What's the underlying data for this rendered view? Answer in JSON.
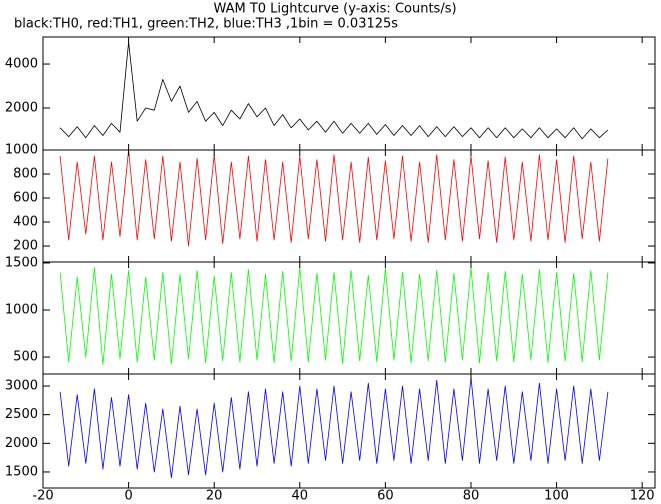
{
  "chart_data": {
    "type": "line",
    "title": "WAM T0 Lightcurve (y-axis: Counts/s)",
    "subtitle": "black:TH0, red:TH1, green:TH2, blue:TH3 ,1bin = 0.03125s",
    "x": [
      -16,
      -14,
      -12,
      -10,
      -8,
      -6,
      -4,
      -2,
      0,
      2,
      4,
      6,
      8,
      10,
      12,
      14,
      16,
      18,
      20,
      22,
      24,
      26,
      28,
      30,
      32,
      34,
      36,
      38,
      40,
      42,
      44,
      46,
      48,
      50,
      52,
      54,
      56,
      58,
      60,
      62,
      64,
      66,
      68,
      70,
      72,
      74,
      76,
      78,
      80,
      82,
      84,
      86,
      88,
      90,
      92,
      94,
      96,
      98,
      100,
      102,
      104,
      106,
      108,
      110,
      112
    ],
    "xlim": [
      -20,
      123
    ],
    "xticks": [
      -20,
      0,
      20,
      40,
      60,
      80,
      100,
      120
    ],
    "panels": [
      {
        "color": "#000000",
        "ylim": [
          90,
          5230
        ],
        "yticks": [
          2000,
          4000
        ],
        "values": [
          1100,
          700,
          1150,
          650,
          1200,
          750,
          1300,
          900,
          5000,
          1400,
          2000,
          1900,
          3300,
          2300,
          3000,
          1800,
          2300,
          1400,
          1800,
          1200,
          1900,
          1500,
          2200,
          1600,
          2000,
          1200,
          1700,
          1100,
          1500,
          1000,
          1400,
          900,
          1400,
          850,
          1300,
          850,
          1300,
          800,
          1250,
          750,
          1200,
          750,
          1200,
          700,
          1150,
          700,
          1150,
          700,
          1100,
          650,
          1100,
          650,
          1100,
          650,
          1050,
          650,
          1100,
          650,
          1050,
          650,
          1100,
          600,
          1050,
          650,
          1000
        ]
      },
      {
        "color": "#ff0000",
        "ylim": [
          67,
          1000
        ],
        "yticks": [
          200,
          400,
          600,
          800,
          1000
        ],
        "values": [
          950,
          250,
          900,
          300,
          950,
          250,
          900,
          280,
          1000,
          250,
          920,
          260,
          950,
          240,
          900,
          200,
          930,
          250,
          960,
          220,
          900,
          260,
          950,
          240,
          920,
          250,
          900,
          230,
          950,
          260,
          920,
          240,
          960,
          250,
          900,
          230,
          940,
          250,
          910,
          260,
          950,
          240,
          900,
          230,
          960,
          250,
          920,
          240,
          950,
          260,
          910,
          230,
          940,
          250,
          900,
          240,
          960,
          250,
          920,
          230,
          950,
          260,
          900,
          240,
          930
        ]
      },
      {
        "color": "#00ff00",
        "ylim": [
          320,
          1510
        ],
        "yticks": [
          500,
          1000,
          1500
        ],
        "values": [
          1400,
          450,
          1350,
          500,
          1450,
          420,
          1380,
          480,
          1420,
          450,
          1350,
          470,
          1400,
          430,
          1380,
          480,
          1420,
          440,
          1360,
          460,
          1400,
          450,
          1430,
          470,
          1380,
          440,
          1410,
          460,
          1450,
          450,
          1390,
          470,
          1400,
          430,
          1420,
          460,
          1370,
          450,
          1440,
          470,
          1400,
          440,
          1380,
          460,
          1420,
          450,
          1390,
          470,
          1450,
          440,
          1400,
          460,
          1410,
          450,
          1380,
          470,
          1430,
          440,
          1400,
          460,
          1390,
          450,
          1420,
          470,
          1400
        ]
      },
      {
        "color": "#0000ff",
        "ylim": [
          1220,
          3210
        ],
        "yticks": [
          1500,
          2000,
          2500,
          3000
        ],
        "values": [
          2900,
          1600,
          2850,
          1650,
          2950,
          1550,
          2800,
          1600,
          2850,
          1550,
          2700,
          1500,
          2600,
          1400,
          2650,
          1450,
          2600,
          1450,
          2700,
          1500,
          2800,
          1550,
          2900,
          1600,
          2950,
          1650,
          2900,
          1600,
          3000,
          1650,
          2950,
          1700,
          3000,
          1650,
          2900,
          1700,
          3050,
          1650,
          2950,
          1700,
          3000,
          1650,
          2950,
          1700,
          3100,
          1650,
          2950,
          1700,
          3150,
          1650,
          2950,
          1700,
          3000,
          1650,
          2900,
          1700,
          3050,
          1650,
          2950,
          1700,
          3000,
          1650,
          2950,
          1700,
          2900
        ]
      }
    ]
  }
}
